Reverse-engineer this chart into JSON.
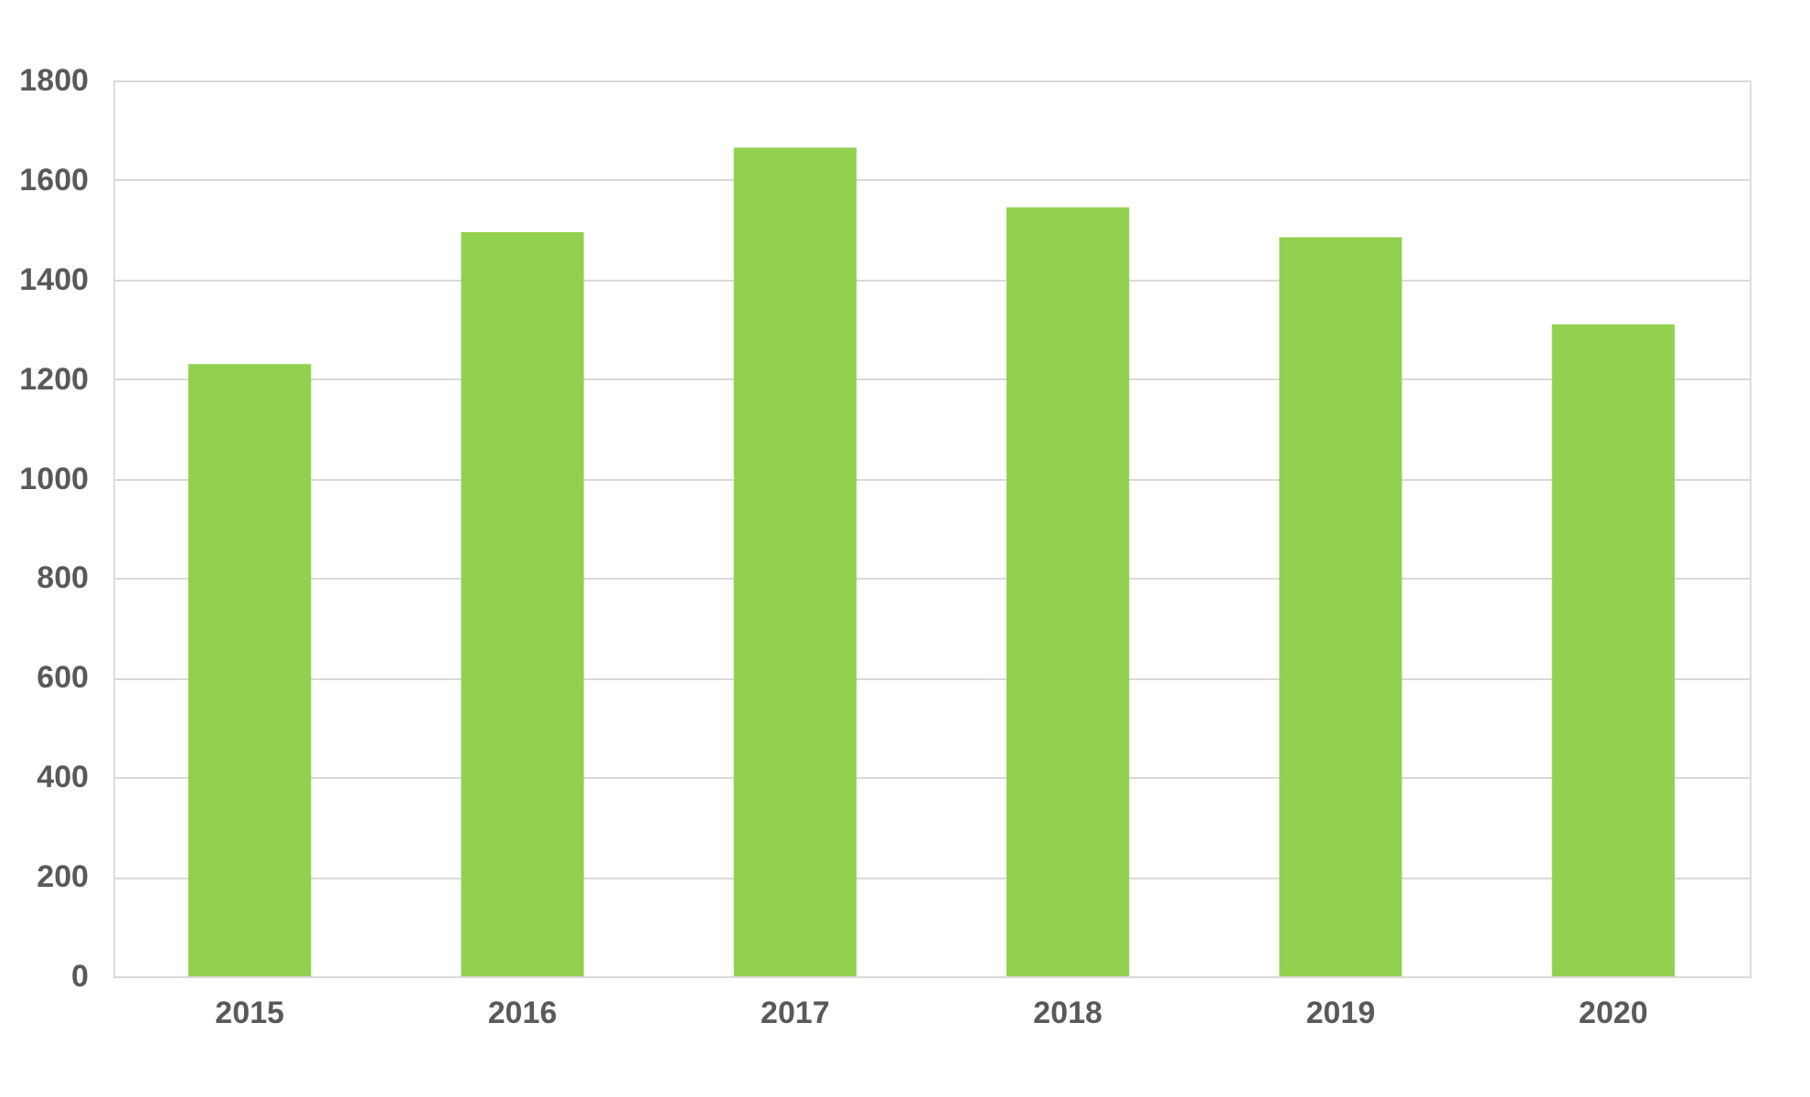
{
  "chart_data": {
    "type": "bar",
    "categories": [
      "2015",
      "2016",
      "2017",
      "2018",
      "2019",
      "2020"
    ],
    "values": [
      1230,
      1495,
      1665,
      1545,
      1485,
      1310
    ],
    "color": "#92d050",
    "ylim": [
      0,
      1800
    ],
    "yticks": [
      0,
      200,
      400,
      600,
      800,
      1000,
      1200,
      1400,
      1600,
      1800
    ],
    "grid": "y"
  }
}
